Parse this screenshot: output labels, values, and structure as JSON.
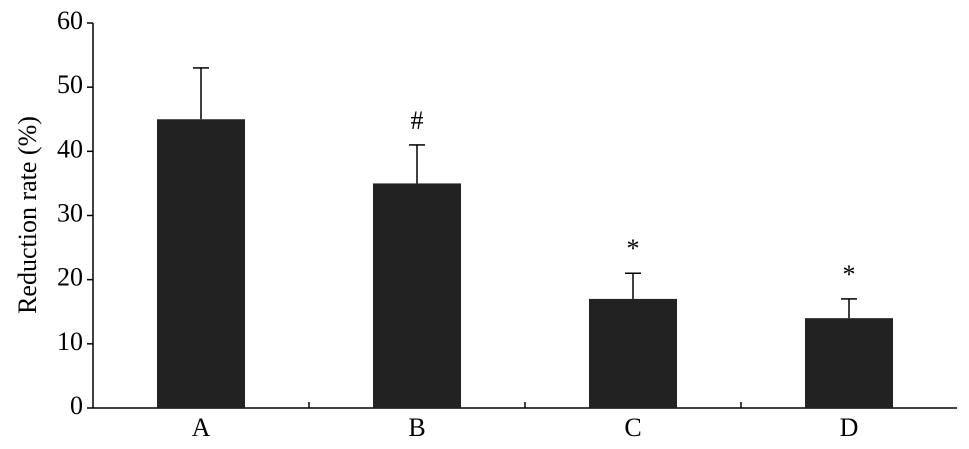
{
  "chart_data": {
    "type": "bar",
    "y_label": "Reduction rate (%)",
    "categories": [
      "A",
      "B",
      "C",
      "D"
    ],
    "values": [
      45,
      35,
      17,
      14
    ],
    "errors": [
      8,
      6,
      4,
      3
    ],
    "annotations": [
      null,
      "#",
      "*",
      "*"
    ],
    "color": "#222222",
    "ylim": [
      0,
      60
    ],
    "yticks": [
      0,
      10,
      20,
      30,
      40,
      50,
      60
    ]
  }
}
